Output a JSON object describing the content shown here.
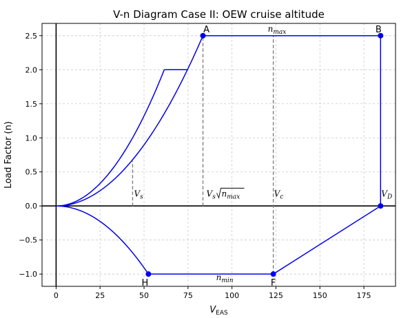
{
  "chart_data": {
    "type": "line",
    "title": "V-n Diagram Case II: OEW cruise altitude",
    "xlabel_main": "V",
    "xlabel_sub": "EAS",
    "ylabel": "Load Factor (n)",
    "xlim": [
      -8,
      193
    ],
    "ylim": [
      -1.18,
      2.68
    ],
    "xticks": [
      0,
      25,
      50,
      75,
      100,
      125,
      150,
      175
    ],
    "yticks": [
      -1.0,
      -0.5,
      0.0,
      0.5,
      1.0,
      1.5,
      2.0,
      2.5
    ],
    "ytick_labels": [
      "−1.0",
      "−0.5",
      "0.0",
      "0.5",
      "1.0",
      "1.5",
      "2.0",
      "2.5"
    ],
    "grid": true,
    "colors": {
      "envelope": "#0000ee",
      "vlines": "#808080",
      "axes": "#000000",
      "grid": "#c8c8c8"
    },
    "speeds": {
      "Vs": 43.5,
      "VA": 83.5,
      "Vc": 123.5,
      "VD": 184.5,
      "VH": 52.5
    },
    "limits": {
      "n_max": 2.5,
      "n_min": -1.0
    },
    "stall_curve_knee": {
      "x": 61.5,
      "y": 2.0
    },
    "upper_curve_end": {
      "x": 74.6,
      "y": 2.0
    },
    "points": [
      {
        "label": "A",
        "x": 83.5,
        "y": 2.5
      },
      {
        "label": "B",
        "x": 184.5,
        "y": 2.5
      },
      {
        "label": "H",
        "x": 52.5,
        "y": -1.0
      },
      {
        "label": "F",
        "x": 123.5,
        "y": -1.0
      },
      {
        "label": "",
        "x": 184.5,
        "y": 0.0
      }
    ],
    "annotations": {
      "n_max": {
        "main": "n",
        "sub": "max"
      },
      "n_min": {
        "main": "n",
        "sub": "min"
      },
      "Vs": {
        "main": "V",
        "sub": "s"
      },
      "VA": {
        "main": "V",
        "sub": "s",
        "root_main": "n",
        "root_sub": "max"
      },
      "Vc": {
        "main": "V",
        "sub": "c"
      },
      "VD": {
        "main": "V",
        "sub": "D"
      }
    }
  }
}
